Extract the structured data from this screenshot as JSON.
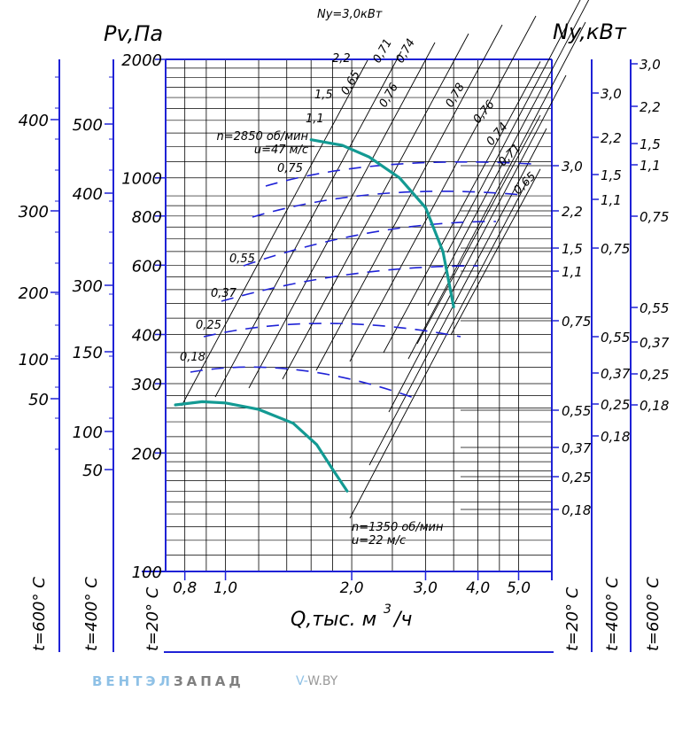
{
  "colors": {
    "axis_blue": "#1f22d6",
    "curve_teal": "#139a93",
    "grid": "#000000",
    "brand_blue": "#8fc1e6",
    "brand_gray": "#7f7f7f"
  },
  "chart_data": {
    "type": "line",
    "title": "",
    "ylabel_left": "Pv,Па",
    "ylabel_right": "Ny,кВт",
    "xlabel": "Q,тыс. м",
    "xlabel_sup": "3",
    "xlabel_tail": "/ч",
    "xscale": "log",
    "yscale": "log",
    "xlim": [
      0.72,
      6.0
    ],
    "ylim": [
      100,
      2000
    ],
    "x_ticks": [
      {
        "v": 0.8,
        "label": "0,8"
      },
      {
        "v": 1.0,
        "label": "1,0"
      },
      {
        "v": 2.0,
        "label": "2,0"
      },
      {
        "v": 3.0,
        "label": "3,0"
      },
      {
        "v": 4.0,
        "label": "4,0"
      },
      {
        "v": 5.0,
        "label": "5,0"
      }
    ],
    "y_ticks": [
      {
        "v": 100,
        "label": "100"
      },
      {
        "v": 200,
        "label": "200"
      },
      {
        "v": 300,
        "label": "300"
      },
      {
        "v": 400,
        "label": "400"
      },
      {
        "v": 600,
        "label": "600"
      },
      {
        "v": 800,
        "label": "800"
      },
      {
        "v": 1000,
        "label": "1000"
      },
      {
        "v": 2000,
        "label": "2000"
      }
    ],
    "temp_scale_600_left": [
      "400",
      "300",
      "200",
      "100",
      "50"
    ],
    "temp_scale_400_left": [
      "500",
      "400",
      "300",
      "150",
      "100",
      "50"
    ],
    "temp_labels": {
      "t600": "t=600° С",
      "t400": "t=400° С",
      "t20": "t=20° С"
    },
    "series": [
      {
        "name": "n=2850 об/мин",
        "note": "u=47 м/с",
        "points": [
          [
            1.6,
            1250
          ],
          [
            1.9,
            1210
          ],
          [
            2.2,
            1130
          ],
          [
            2.6,
            1000
          ],
          [
            3.0,
            840
          ],
          [
            3.3,
            650
          ],
          [
            3.5,
            470
          ]
        ]
      },
      {
        "name": "n=1350 об/мин",
        "note": "u=22 м/с",
        "points": [
          [
            0.76,
            265
          ],
          [
            0.88,
            270
          ],
          [
            1.0,
            268
          ],
          [
            1.2,
            258
          ],
          [
            1.45,
            238
          ],
          [
            1.65,
            210
          ],
          [
            1.8,
            182
          ],
          [
            1.95,
            160
          ]
        ]
      }
    ],
    "power_values_high": [
      "Ny=3,0кВт",
      "2,2",
      "1,5",
      "1,1",
      "0,75"
    ],
    "power_values_low": [
      "0,55",
      "0,37",
      "0,25",
      "0,18"
    ],
    "efficiency_labels": [
      "0,65",
      "0,71",
      "0,74",
      "0,76",
      "0,78",
      "0,76",
      "0,74",
      "0,71",
      "0,65"
    ],
    "power_scale_near": [
      "3,0",
      "2,2",
      "1,5",
      "1,1",
      "0,75",
      "0,55",
      "0,37",
      "0,25",
      "0,18"
    ],
    "power_scale_400": [
      "3,0",
      "2,2",
      "1,5",
      "1,1",
      "0,75",
      "0,55",
      "0,37",
      "0,25",
      "0,18"
    ],
    "power_scale_600": [
      "3,0",
      "2,2",
      "1,5",
      "1,1",
      "0,75",
      "0,55",
      "0,37",
      "0,25",
      "0,18"
    ]
  },
  "brand": {
    "part1": "ВЕНТЭЛ",
    "part2": "ЗАПАД",
    "site_prefix": "V-",
    "site_rest": "W.BY"
  }
}
